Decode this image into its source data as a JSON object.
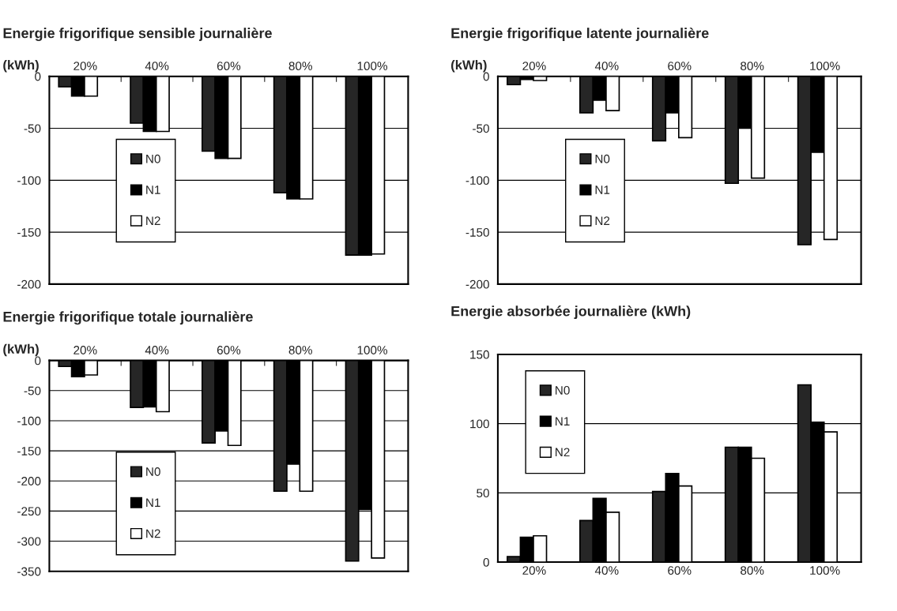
{
  "chart_data": [
    {
      "type": "bar",
      "title": "Energie frigorifique sensible journalière",
      "ylabel": "(kWh)",
      "categories": [
        "20%",
        "40%",
        "60%",
        "80%",
        "100%"
      ],
      "ylim": [
        -200,
        0
      ],
      "yticks": [
        -200,
        -150,
        -100,
        -50,
        0
      ],
      "grid": "y",
      "legend": "left",
      "series": [
        {
          "name": "N0",
          "color": "#262626",
          "values": [
            -10,
            -45,
            -72,
            -112,
            -172
          ]
        },
        {
          "name": "N1",
          "color": "#000000",
          "values": [
            -19,
            -53,
            -79,
            -118,
            -172
          ]
        },
        {
          "name": "N2",
          "color": "#ffffff",
          "values": [
            -19,
            -53,
            -79,
            -118,
            -171
          ]
        }
      ]
    },
    {
      "type": "bar",
      "title": "Energie frigorifique latente journalière",
      "ylabel": "(kWh)",
      "categories": [
        "20%",
        "40%",
        "60%",
        "80%",
        "100%"
      ],
      "ylim": [
        -200,
        0
      ],
      "yticks": [
        -200,
        -150,
        -100,
        -50,
        0
      ],
      "grid": "y",
      "legend": "left",
      "series": [
        {
          "name": "N0",
          "color": "#262626",
          "values": [
            -8,
            -35,
            -62,
            -103,
            -162
          ]
        },
        {
          "name": "N1",
          "color": "#000000",
          "values": [
            -3,
            -23,
            -35,
            -50,
            -73
          ]
        },
        {
          "name": "N2",
          "color": "#ffffff",
          "values": [
            -4,
            -33,
            -59,
            -98,
            -157
          ]
        }
      ]
    },
    {
      "type": "bar",
      "title": "Energie frigorifique totale journalière",
      "ylabel": "(kWh)",
      "categories": [
        "20%",
        "40%",
        "60%",
        "80%",
        "100%"
      ],
      "ylim": [
        -350,
        0
      ],
      "yticks": [
        -350,
        -300,
        -250,
        -200,
        -150,
        -100,
        -50,
        0
      ],
      "grid": "y",
      "legend": "bottom left",
      "series": [
        {
          "name": "N0",
          "color": "#262626",
          "values": [
            -10,
            -78,
            -137,
            -217,
            -333
          ]
        },
        {
          "name": "N1",
          "color": "#000000",
          "values": [
            -27,
            -77,
            -117,
            -172,
            -247
          ]
        },
        {
          "name": "N2",
          "color": "#ffffff",
          "values": [
            -24,
            -85,
            -141,
            -217,
            -328
          ]
        }
      ]
    },
    {
      "type": "bar",
      "title": "Energie absorbée journalière (kWh)",
      "categories": [
        "20%",
        "40%",
        "60%",
        "80%",
        "100%"
      ],
      "ylim": [
        0,
        150
      ],
      "yticks": [
        0,
        50,
        100,
        150
      ],
      "grid": "y",
      "legend": "top left",
      "series": [
        {
          "name": "N0",
          "color": "#262626",
          "values": [
            4,
            30,
            51,
            83,
            128
          ]
        },
        {
          "name": "N1",
          "color": "#000000",
          "values": [
            18,
            46,
            64,
            83,
            101
          ]
        },
        {
          "name": "N2",
          "color": "#ffffff",
          "values": [
            19,
            36,
            55,
            75,
            94
          ]
        }
      ]
    }
  ]
}
